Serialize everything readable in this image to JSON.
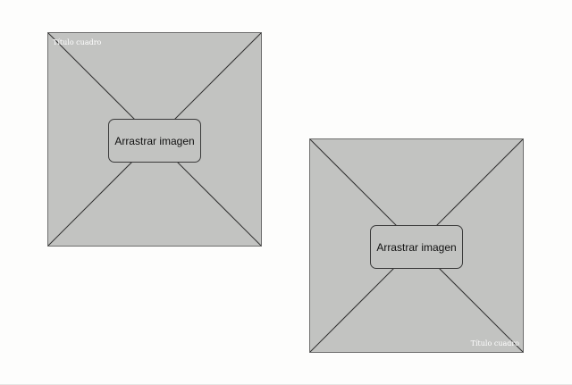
{
  "frames": [
    {
      "title": "Título cuadro",
      "button_label": "Arrastrar imagen"
    },
    {
      "title": "Título cuadro",
      "button_label": "Arrastrar imagen"
    }
  ],
  "colors": {
    "frame_fill": "#c2c3c1",
    "frame_border": "#6e6e6e",
    "page_background": "#fdfdfc",
    "title_text": "#ffffff"
  },
  "icons": {
    "placeholder": "image-placeholder-cross-icon"
  }
}
